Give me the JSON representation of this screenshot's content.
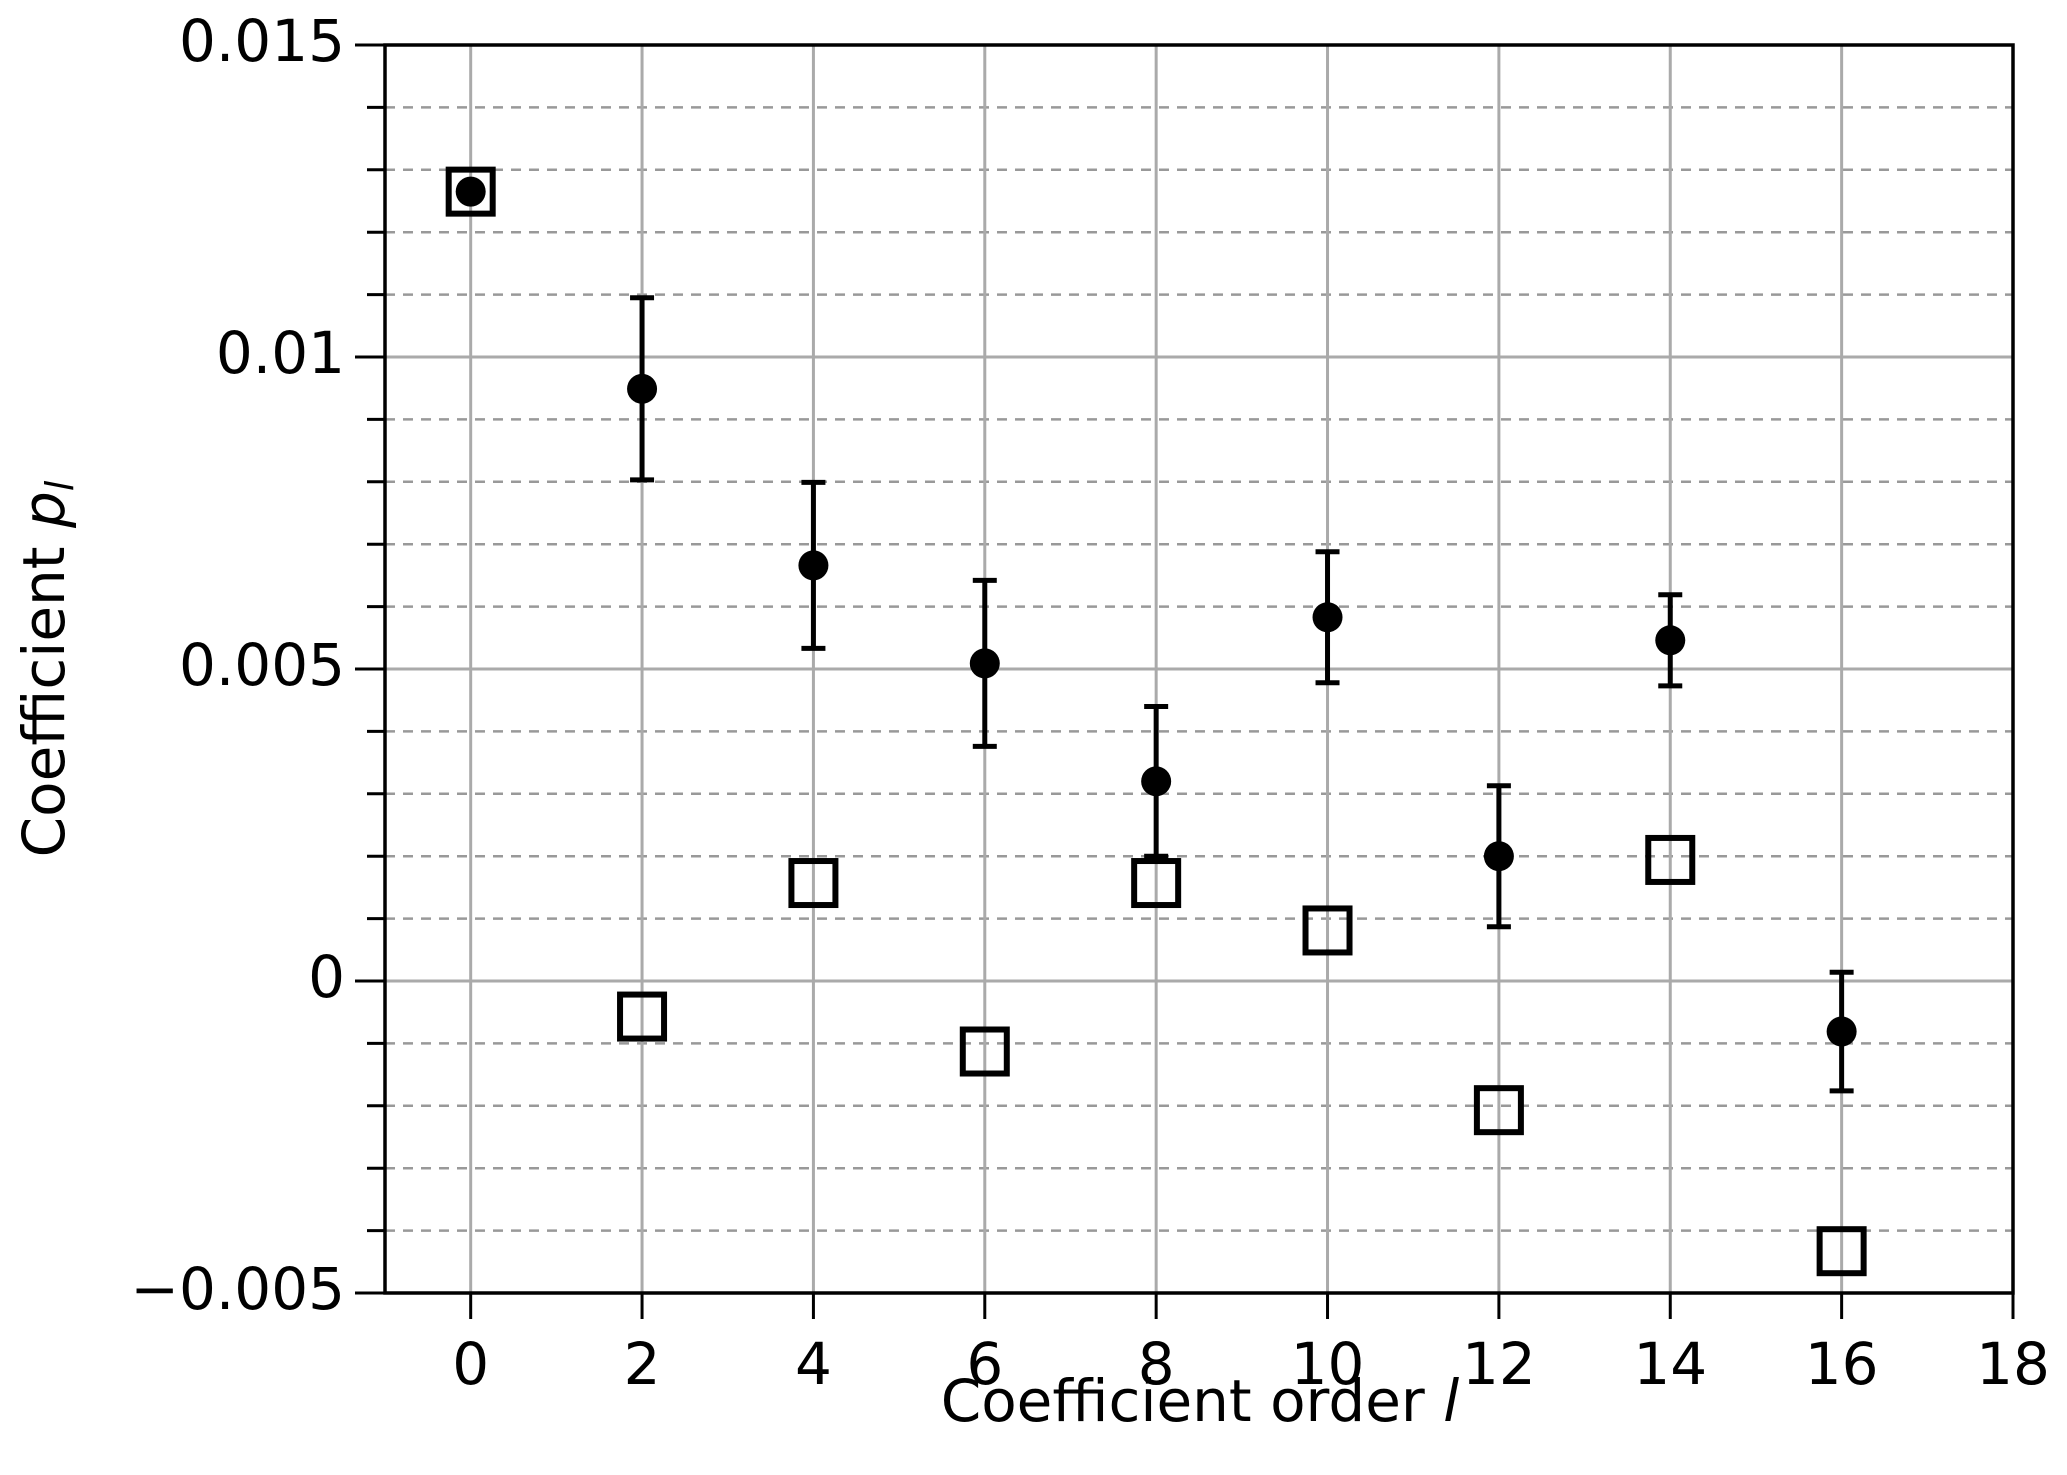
{
  "chart_data": {
    "type": "scatter",
    "xlabel": "Coefficient order",
    "xlabel_var": "l",
    "ylabel": "Coefficient",
    "ylabel_var": "p",
    "ylabel_sub": "l",
    "x": [
      0,
      2,
      4,
      6,
      8,
      10,
      12,
      14,
      16
    ],
    "series": [
      {
        "marker": "circle",
        "color": "#000000",
        "values": [
          0.01265,
          0.00949,
          0.00666,
          0.00509,
          0.0032,
          0.00583,
          0.002,
          0.00546,
          -0.00081
        ],
        "errors": [
          null,
          0.00146,
          0.00133,
          0.00133,
          0.0012,
          0.00105,
          0.00113,
          0.00073,
          0.00095
        ]
      },
      {
        "marker": "square",
        "color": "#000000",
        "values": [
          0.01265,
          -0.00057,
          0.00157,
          -0.00113,
          0.00157,
          0.00081,
          -0.00207,
          0.00194,
          -0.00433
        ]
      }
    ],
    "xlim": [
      -1,
      18
    ],
    "xticks": [
      0,
      2,
      4,
      6,
      8,
      10,
      12,
      14,
      16,
      18
    ],
    "ylim": [
      -0.005,
      0.015
    ],
    "yticks": [
      {
        "value": -0.005,
        "label": "−0.005"
      },
      0,
      0.005,
      0.01,
      0.015
    ],
    "minor_yticks": [
      -0.004,
      -0.003,
      -0.002,
      -0.001,
      0.001,
      0.002,
      0.003,
      0.004,
      0.006,
      0.007,
      0.008,
      0.009,
      0.011,
      0.012,
      0.013,
      0.014
    ],
    "grid": true
  }
}
